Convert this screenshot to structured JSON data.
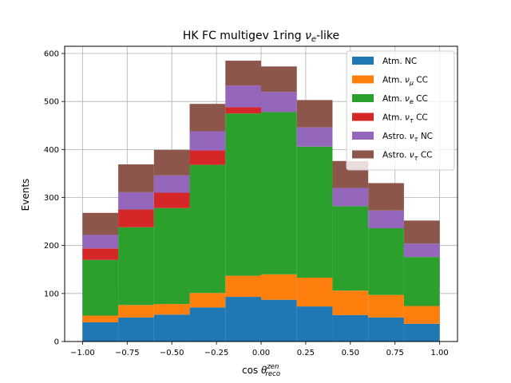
{
  "chart_data": {
    "type": "bar",
    "stacked": true,
    "title_main": "HK FC multigev 1ring ",
    "title_sym": "ν",
    "title_sub": "e",
    "title_tail": "-like",
    "xlabel_main": "cos ",
    "xlabel_sym": "θ",
    "xlabel_sup": "zen",
    "xlabel_sub": "reco",
    "ylabel": "Events",
    "xlim": [
      -1.1,
      1.1
    ],
    "ylim": [
      0,
      615
    ],
    "grid": true,
    "legend_position": "top-right",
    "bin_edges": [
      -1.0,
      -0.8,
      -0.6,
      -0.4,
      -0.2,
      0.0,
      0.2,
      0.4,
      0.6,
      0.8,
      1.0
    ],
    "x_ticks": [
      -1.0,
      -0.75,
      -0.5,
      -0.25,
      0.0,
      0.25,
      0.5,
      0.75,
      1.0
    ],
    "x_tick_labels": [
      "−1.00",
      "−0.75",
      "−0.50",
      "−0.25",
      "0.00",
      "0.25",
      "0.50",
      "0.75",
      "1.00"
    ],
    "y_ticks": [
      0,
      100,
      200,
      300,
      400,
      500,
      600
    ],
    "y_tick_labels": [
      "0",
      "100",
      "200",
      "300",
      "400",
      "500",
      "600"
    ],
    "series": [
      {
        "name": "Atm. NC",
        "label_main": "Atm. NC",
        "label_sym": "",
        "label_sub": "",
        "label_tail": "",
        "color": "#1f77b4",
        "values": [
          40,
          50,
          56,
          71,
          93,
          87,
          73,
          55,
          50,
          37
        ]
      },
      {
        "name": "Atm. νμ CC",
        "label_main": "Atm. ",
        "label_sym": "ν",
        "label_sub": "μ",
        "label_tail": " CC",
        "color": "#ff7f0e",
        "values": [
          14,
          26,
          22,
          30,
          44,
          53,
          60,
          51,
          47,
          37
        ]
      },
      {
        "name": "Atm. νe CC",
        "label_main": "Atm. ",
        "label_sym": "ν",
        "label_sub": "e",
        "label_tail": " CC",
        "color": "#2ca02c",
        "values": [
          116,
          162,
          200,
          267,
          338,
          338,
          273,
          176,
          139,
          102
        ]
      },
      {
        "name": "Atm. ντ CC",
        "label_main": "Atm. ",
        "label_sym": "ν",
        "label_sub": "τ",
        "label_tail": " CC",
        "color": "#d62728",
        "values": [
          24,
          37,
          32,
          30,
          13,
          0,
          0,
          0,
          0,
          0
        ]
      },
      {
        "name": "Astro. ντ NC",
        "label_main": "Astro. ",
        "label_sym": "ν",
        "label_sub": "τ",
        "label_tail": " NC",
        "color": "#9467bd",
        "values": [
          28,
          36,
          36,
          40,
          45,
          42,
          40,
          38,
          37,
          28
        ]
      },
      {
        "name": "Astro. ντ CC",
        "label_main": "Astro. ",
        "label_sym": "ν",
        "label_sub": "τ",
        "label_tail": " CC",
        "color": "#8c564b",
        "values": [
          46,
          58,
          53,
          57,
          52,
          53,
          57,
          56,
          57,
          48
        ]
      }
    ]
  }
}
